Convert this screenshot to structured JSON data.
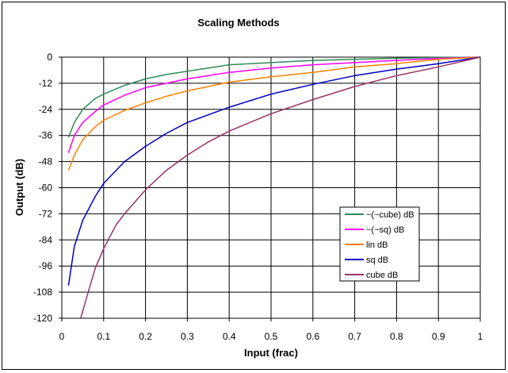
{
  "chart_data": {
    "type": "line",
    "title": "Scaling Methods",
    "xlabel": "Input (frac)",
    "ylabel": "Output (dB)",
    "xlim": [
      0,
      1
    ],
    "ylim": [
      -120,
      0
    ],
    "x_ticks": [
      0,
      0.1,
      0.2,
      0.3,
      0.4,
      0.5,
      0.6,
      0.7,
      0.8,
      0.9,
      1
    ],
    "y_ticks": [
      0,
      -12,
      -24,
      -36,
      -48,
      -60,
      -72,
      -84,
      -96,
      -108,
      -120
    ],
    "grid": true,
    "legend_position": "lower-right",
    "series": [
      {
        "name": "~(~cube) dB",
        "color": "#2e8b57",
        "points": [
          [
            0.016,
            -37
          ],
          [
            0.03,
            -30
          ],
          [
            0.05,
            -24
          ],
          [
            0.08,
            -19
          ],
          [
            0.1,
            -17
          ],
          [
            0.15,
            -13
          ],
          [
            0.2,
            -10
          ],
          [
            0.25,
            -8
          ],
          [
            0.3,
            -6.5
          ],
          [
            0.35,
            -5
          ],
          [
            0.4,
            -3.5
          ],
          [
            0.5,
            -2.5
          ],
          [
            0.6,
            -1.5
          ],
          [
            0.7,
            -1
          ],
          [
            0.8,
            -0.5
          ],
          [
            0.9,
            -0.2
          ],
          [
            1,
            0
          ]
        ]
      },
      {
        "name": "~(~sq) dB",
        "color": "#ff00ff",
        "points": [
          [
            0.016,
            -44
          ],
          [
            0.03,
            -36
          ],
          [
            0.05,
            -30
          ],
          [
            0.08,
            -25
          ],
          [
            0.1,
            -22
          ],
          [
            0.15,
            -17.5
          ],
          [
            0.2,
            -14
          ],
          [
            0.25,
            -12
          ],
          [
            0.3,
            -10
          ],
          [
            0.35,
            -8.5
          ],
          [
            0.4,
            -7
          ],
          [
            0.5,
            -5
          ],
          [
            0.6,
            -3.5
          ],
          [
            0.7,
            -2.5
          ],
          [
            0.8,
            -1.5
          ],
          [
            0.9,
            -0.6
          ],
          [
            1,
            0
          ]
        ]
      },
      {
        "name": "lin dB",
        "color": "#ff8000",
        "points": [
          [
            0.016,
            -52
          ],
          [
            0.03,
            -45
          ],
          [
            0.05,
            -38
          ],
          [
            0.08,
            -32
          ],
          [
            0.1,
            -29
          ],
          [
            0.15,
            -24.5
          ],
          [
            0.2,
            -21
          ],
          [
            0.25,
            -18
          ],
          [
            0.3,
            -15.5
          ],
          [
            0.35,
            -13.5
          ],
          [
            0.4,
            -11.5
          ],
          [
            0.5,
            -9
          ],
          [
            0.6,
            -7
          ],
          [
            0.7,
            -4.5
          ],
          [
            0.8,
            -3
          ],
          [
            0.9,
            -1
          ],
          [
            1,
            0
          ]
        ]
      },
      {
        "name": "sq dB",
        "color": "#0000c0",
        "points": [
          [
            0.016,
            -105
          ],
          [
            0.03,
            -87
          ],
          [
            0.05,
            -75
          ],
          [
            0.08,
            -64
          ],
          [
            0.1,
            -58
          ],
          [
            0.15,
            -48
          ],
          [
            0.2,
            -41
          ],
          [
            0.25,
            -35
          ],
          [
            0.3,
            -30
          ],
          [
            0.35,
            -26.5
          ],
          [
            0.4,
            -23
          ],
          [
            0.5,
            -17
          ],
          [
            0.6,
            -12.5
          ],
          [
            0.7,
            -8.5
          ],
          [
            0.8,
            -5.5
          ],
          [
            0.9,
            -3
          ],
          [
            1,
            0
          ]
        ]
      },
      {
        "name": "cube dB",
        "color": "#993366",
        "points": [
          [
            0.045,
            -120
          ],
          [
            0.06,
            -110
          ],
          [
            0.08,
            -97
          ],
          [
            0.1,
            -88
          ],
          [
            0.13,
            -77
          ],
          [
            0.15,
            -72
          ],
          [
            0.2,
            -61
          ],
          [
            0.25,
            -52
          ],
          [
            0.3,
            -45
          ],
          [
            0.35,
            -39
          ],
          [
            0.4,
            -34
          ],
          [
            0.5,
            -26
          ],
          [
            0.6,
            -19.5
          ],
          [
            0.7,
            -13.5
          ],
          [
            0.8,
            -8.5
          ],
          [
            0.9,
            -4.5
          ],
          [
            1,
            0
          ]
        ]
      }
    ]
  }
}
